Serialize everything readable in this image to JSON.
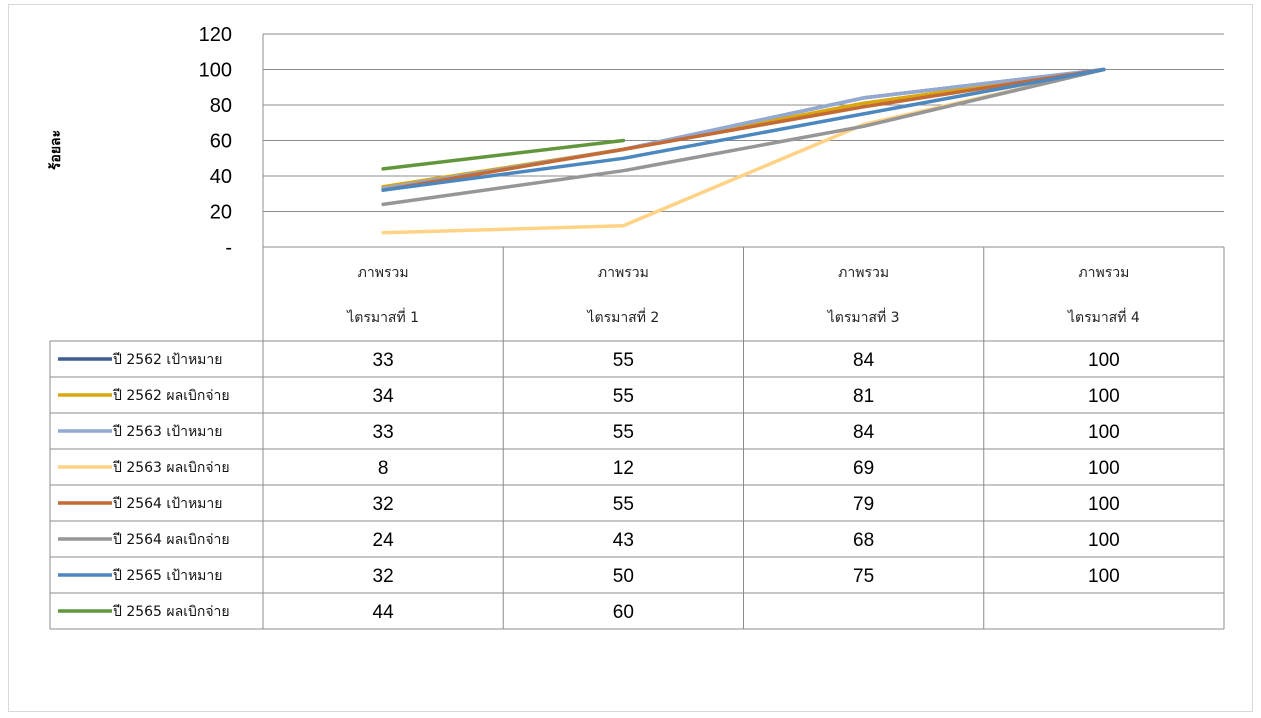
{
  "chart_data": {
    "type": "line",
    "ylabel": "ร้อยละ",
    "ylim": [
      0,
      120
    ],
    "yticks": [
      "-",
      "20",
      "40",
      "60",
      "80",
      "100",
      "120"
    ],
    "grid": true,
    "categories": [
      [
        "ภาพรวม",
        "ไตรมาสที่ 1"
      ],
      [
        "ภาพรวม",
        "ไตรมาสที่ 2"
      ],
      [
        "ภาพรวม",
        "ไตรมาสที่ 3"
      ],
      [
        "ภาพรวม",
        "ไตรมาสที่ 4"
      ]
    ],
    "legend_position": "data-table",
    "series": [
      {
        "name": "ปี 2562 เป้าหมาย",
        "color": "#3e5f8f",
        "values": [
          33,
          55,
          84,
          100
        ]
      },
      {
        "name": "ปี 2562 ผลเบิกจ่าย",
        "color": "#d9a70e",
        "values": [
          34,
          55,
          81,
          100
        ]
      },
      {
        "name": "ปี 2563 เป้าหมาย",
        "color": "#93a9d2",
        "values": [
          33,
          55,
          84,
          100
        ]
      },
      {
        "name": "ปี 2563 ผลเบิกจ่าย",
        "color": "#ffd286",
        "values": [
          8,
          12,
          69,
          100
        ]
      },
      {
        "name": "ปี 2564 เป้าหมาย",
        "color": "#c46a35",
        "values": [
          32,
          55,
          79,
          100
        ]
      },
      {
        "name": "ปี 2564 ผลเบิกจ่าย",
        "color": "#969696",
        "values": [
          24,
          43,
          68,
          100
        ]
      },
      {
        "name": "ปี 2565 เป้าหมาย",
        "color": "#4d87c0",
        "values": [
          32,
          50,
          75,
          100
        ]
      },
      {
        "name": "ปี 2565 ผลเบิกจ่าย",
        "color": "#62963c",
        "values": [
          44,
          60,
          null,
          null
        ]
      }
    ]
  }
}
